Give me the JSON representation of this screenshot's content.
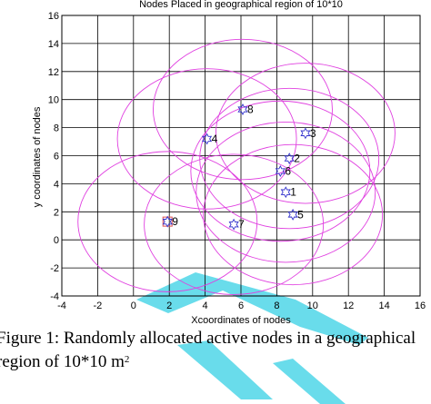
{
  "chart_data": {
    "type": "scatter",
    "title": "Nodes Placed in geographical region of 10*10",
    "xlabel": "Xcoordinates of nodes",
    "ylabel": "y coordinates of nodes",
    "xlim": [
      -4,
      16
    ],
    "ylim": [
      -4,
      16
    ],
    "xticks": [
      -4,
      -2,
      0,
      2,
      4,
      6,
      8,
      10,
      12,
      14,
      16
    ],
    "yticks": [
      -4,
      -2,
      0,
      2,
      4,
      6,
      8,
      10,
      12,
      14,
      16
    ],
    "grid": true,
    "range_radius": 5,
    "nodes": [
      {
        "id": "1",
        "x": 8.5,
        "y": 3.4
      },
      {
        "id": "2",
        "x": 8.7,
        "y": 5.8
      },
      {
        "id": "3",
        "x": 9.6,
        "y": 7.6
      },
      {
        "id": "4",
        "x": 4.1,
        "y": 7.2
      },
      {
        "id": "5",
        "x": 8.9,
        "y": 1.8
      },
      {
        "id": "6",
        "x": 8.2,
        "y": 4.9
      },
      {
        "id": "7",
        "x": 5.6,
        "y": 1.1
      },
      {
        "id": "8",
        "x": 6.1,
        "y": 9.3
      },
      {
        "id": "9",
        "x": 1.9,
        "y": 1.3
      }
    ],
    "colors": {
      "range_circle": "#e040e0",
      "node_marker": "#3333cc",
      "special_node_marker": "#e05050",
      "grid": "#000000"
    }
  },
  "caption": {
    "line1": "Figure 1: Randomly allocated active nodes in a geographical",
    "line2_main": "region of 10*10 m",
    "line2_sup": "2"
  }
}
